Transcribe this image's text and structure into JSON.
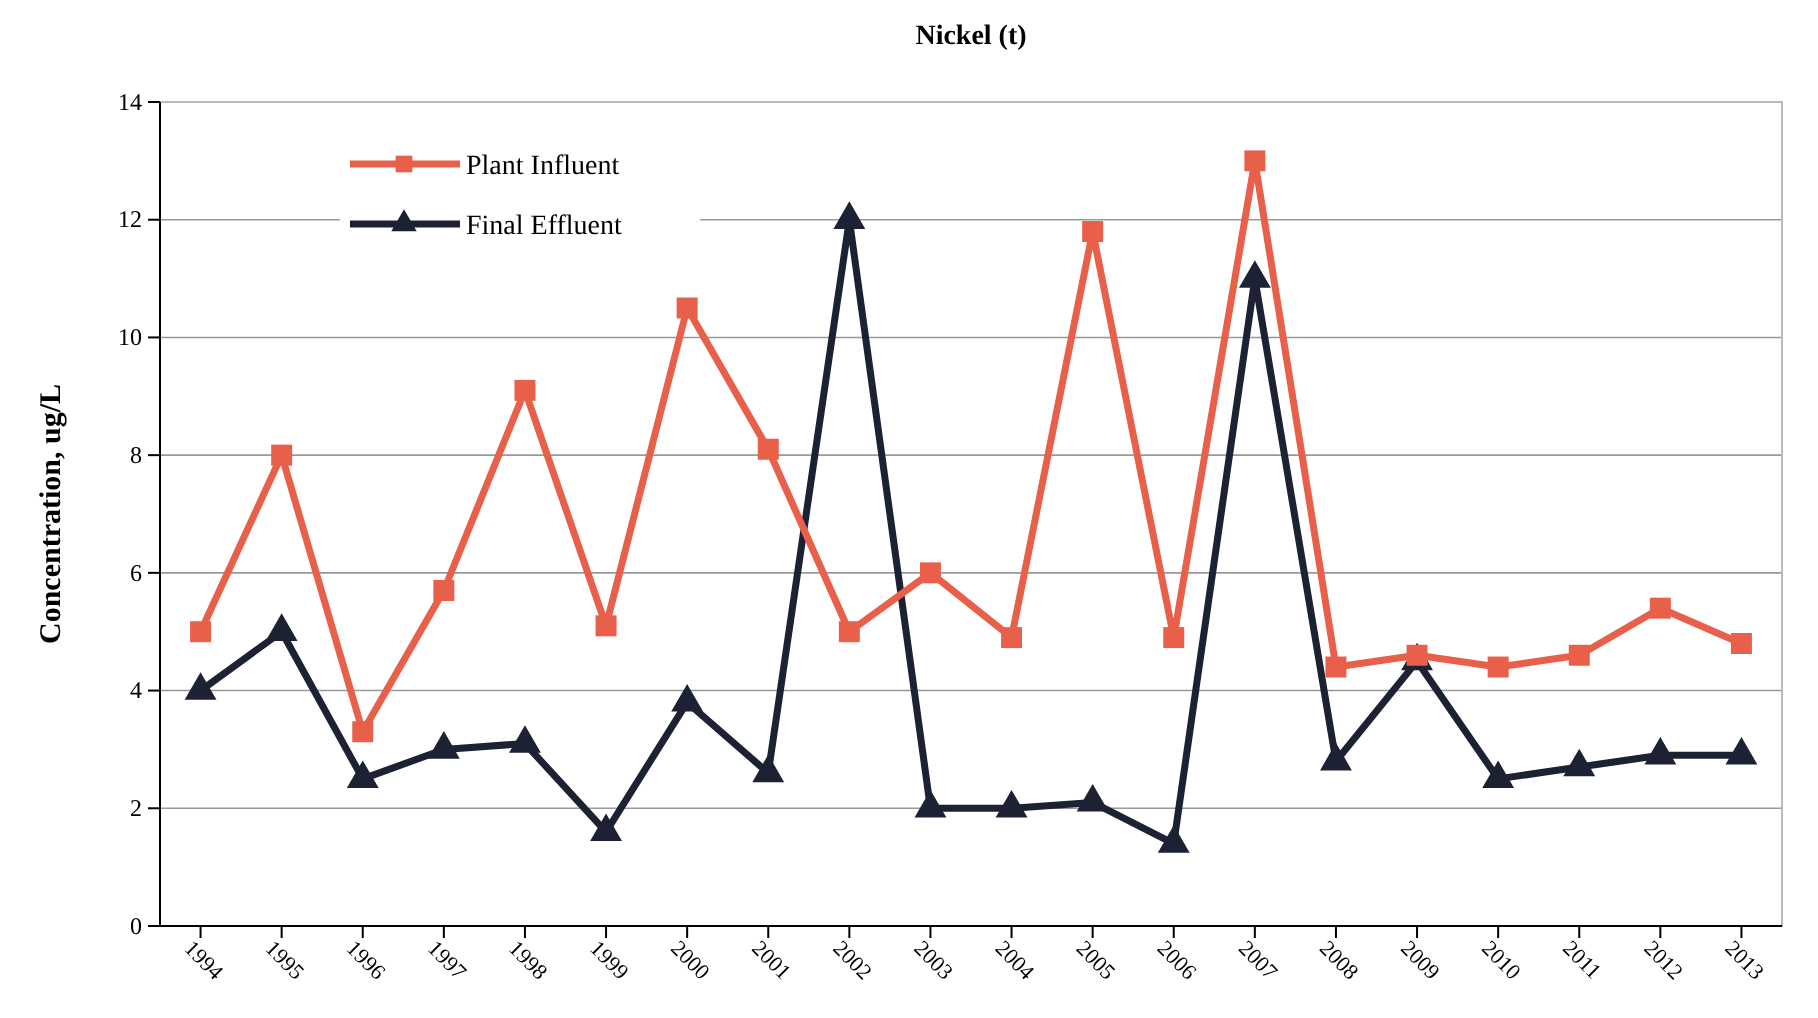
{
  "chart_data": {
    "type": "line",
    "title": "Nickel (t)",
    "ylabel": "Concentration, ug/L",
    "categories": [
      "1994",
      "1995",
      "1996",
      "1997",
      "1998",
      "1999",
      "2000",
      "2001",
      "2002",
      "2003",
      "2004",
      "2005",
      "2006",
      "2007",
      "2008",
      "2009",
      "2010",
      "2011",
      "2012",
      "2013"
    ],
    "series": [
      {
        "name": "Plant Influent",
        "color": "#e8604a",
        "marker": "square",
        "values": [
          5.0,
          8.0,
          3.3,
          5.7,
          9.1,
          5.1,
          10.5,
          8.1,
          5.0,
          6.0,
          4.9,
          11.8,
          4.9,
          13.0,
          4.4,
          4.6,
          4.4,
          4.6,
          5.4,
          4.8
        ]
      },
      {
        "name": "Final Effluent",
        "color": "#1c2233",
        "marker": "triangle",
        "values": [
          4.0,
          5.0,
          2.5,
          3.0,
          3.1,
          1.6,
          3.8,
          2.6,
          12.0,
          2.0,
          2.0,
          2.1,
          1.4,
          11.0,
          2.8,
          4.5,
          2.5,
          2.7,
          2.9,
          2.9
        ]
      }
    ],
    "ylim": [
      0,
      14
    ],
    "yticks": [
      0,
      2,
      4,
      6,
      8,
      10,
      12,
      14
    ],
    "grid": "y",
    "legend": "top left"
  }
}
